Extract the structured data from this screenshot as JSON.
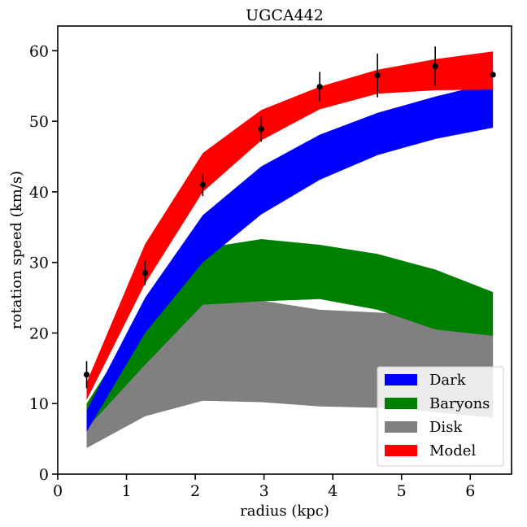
{
  "chart_data": {
    "type": "area",
    "title": "UGCA442",
    "xlabel": "radius (kpc)",
    "ylabel": "rotation speed (km/s)",
    "xlim": [
      0,
      6.6
    ],
    "ylim": [
      0,
      63.5
    ],
    "x_ticks": [
      0,
      1,
      2,
      3,
      4,
      5,
      6
    ],
    "y_ticks": [
      0,
      10,
      20,
      30,
      40,
      50,
      60
    ],
    "grid": false,
    "legend_placement": "lower-right",
    "x": [
      0.42,
      1.27,
      2.11,
      2.96,
      3.81,
      4.65,
      5.49,
      6.33
    ],
    "bands": [
      {
        "name": "Disk",
        "color": "#808080",
        "lower": [
          3.7,
          8.2,
          10.4,
          10.2,
          9.6,
          9.4,
          8.8,
          8.0
        ],
        "upper": [
          8.0,
          20.0,
          25.2,
          24.6,
          23.3,
          22.9,
          22.3,
          19.8
        ]
      },
      {
        "name": "Baryons",
        "color": "#008000",
        "lower": [
          6.5,
          15.5,
          24.0,
          24.5,
          24.8,
          23.3,
          20.5,
          19.6
        ],
        "upper": [
          10.0,
          23.0,
          32.0,
          33.3,
          32.5,
          31.2,
          29.0,
          25.8
        ]
      },
      {
        "name": "Dark",
        "color": "#0000ff",
        "lower": [
          6.0,
          20.0,
          30.0,
          36.8,
          41.7,
          45.2,
          47.5,
          49.1
        ],
        "upper": [
          9.0,
          25.0,
          36.7,
          43.6,
          48.1,
          51.2,
          53.5,
          55.5
        ]
      },
      {
        "name": "Model",
        "color": "#ff0000",
        "lower": [
          10.5,
          27.0,
          40.0,
          47.3,
          51.7,
          53.9,
          54.4,
          54.5
        ],
        "upper": [
          13.0,
          32.6,
          45.5,
          51.6,
          54.9,
          57.3,
          58.8,
          59.9
        ]
      }
    ],
    "observations": {
      "x": [
        0.42,
        1.27,
        2.11,
        2.96,
        3.81,
        4.65,
        5.49,
        6.33
      ],
      "y": [
        14.1,
        28.5,
        41.0,
        48.9,
        54.9,
        56.5,
        57.8,
        56.6
      ],
      "err": [
        1.9,
        1.7,
        1.6,
        1.8,
        2.1,
        3.1,
        2.8,
        0.0
      ],
      "color": "#000000"
    },
    "legend": [
      {
        "name": "Dark",
        "color": "#0000ff"
      },
      {
        "name": "Baryons",
        "color": "#008000"
      },
      {
        "name": "Disk",
        "color": "#808080"
      },
      {
        "name": "Model",
        "color": "#ff0000"
      }
    ]
  }
}
